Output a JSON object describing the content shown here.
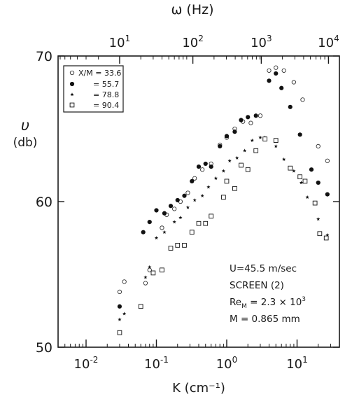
{
  "chart_data": {
    "type": "scatter",
    "xscale": "log",
    "yscale": "linear",
    "xlim": [
      0.004,
      40
    ],
    "ylim": [
      50,
      70
    ],
    "yticks": [
      {
        "value": 50,
        "label": "50"
      },
      {
        "value": 60,
        "label": "60"
      },
      {
        "value": 70,
        "label": "70"
      }
    ],
    "xticks": [
      {
        "value": 0.01,
        "base": "10",
        "exp": "-2"
      },
      {
        "value": 0.1,
        "base": "10",
        "exp": "-1"
      },
      {
        "value": 1,
        "base": "10",
        "exp": "0"
      },
      {
        "value": 10,
        "base": "10",
        "exp": "1"
      }
    ],
    "top_axis": {
      "label": "ω (Hz)",
      "ticks": [
        {
          "value": 0.03,
          "base": "10",
          "exp": "1"
        },
        {
          "value": 0.33,
          "base": "10",
          "exp": "2"
        },
        {
          "value": 3.1,
          "base": "10",
          "exp": "3"
        },
        {
          "value": 28,
          "base": "10",
          "exp": "4"
        }
      ]
    },
    "xlabel": "K (cm⁻¹)",
    "ylabel": [
      "υ",
      "(db)"
    ],
    "legend": {
      "placement": "top-left",
      "entries": [
        "X/M = 33.6",
        "= 55.7",
        "= 78.8",
        "= 90.4"
      ]
    },
    "annotations": [
      "U=45.5 m/sec",
      "SCREEN (2)",
      "Re_M = 2.3 × 10^3",
      "M = 0.865 mm"
    ],
    "series": [
      {
        "name": "X/M = 33.6",
        "marker": "open-circle",
        "points": [
          [
            0.03,
            53.8
          ],
          [
            0.035,
            54.5
          ],
          [
            0.07,
            54.4
          ],
          [
            0.08,
            55.3
          ],
          [
            0.12,
            58.2
          ],
          [
            0.14,
            59.1
          ],
          [
            0.18,
            59.5
          ],
          [
            0.22,
            60.0
          ],
          [
            0.28,
            60.6
          ],
          [
            0.35,
            61.6
          ],
          [
            0.45,
            62.2
          ],
          [
            0.6,
            62.6
          ],
          [
            0.8,
            63.9
          ],
          [
            1.0,
            64.4
          ],
          [
            1.3,
            65.0
          ],
          [
            1.7,
            65.5
          ],
          [
            2.2,
            65.4
          ],
          [
            3.0,
            65.9
          ],
          [
            4.0,
            69.0
          ],
          [
            5.0,
            69.2
          ],
          [
            6.5,
            69.0
          ],
          [
            9.0,
            68.2
          ],
          [
            12.0,
            67.0
          ],
          [
            20.0,
            63.8
          ],
          [
            27.0,
            62.8
          ]
        ]
      },
      {
        "name": "= 55.7",
        "marker": "filled-circle",
        "points": [
          [
            0.03,
            52.8
          ],
          [
            0.065,
            57.9
          ],
          [
            0.08,
            58.6
          ],
          [
            0.1,
            59.4
          ],
          [
            0.13,
            59.2
          ],
          [
            0.16,
            59.7
          ],
          [
            0.2,
            60.1
          ],
          [
            0.25,
            60.4
          ],
          [
            0.32,
            61.4
          ],
          [
            0.4,
            62.4
          ],
          [
            0.5,
            62.6
          ],
          [
            0.6,
            62.4
          ],
          [
            0.8,
            63.8
          ],
          [
            1.0,
            64.5
          ],
          [
            1.3,
            64.8
          ],
          [
            1.6,
            65.6
          ],
          [
            2.0,
            65.8
          ],
          [
            2.6,
            65.9
          ],
          [
            4.0,
            68.3
          ],
          [
            5.0,
            68.8
          ],
          [
            6.0,
            67.8
          ],
          [
            8.0,
            66.5
          ],
          [
            11.0,
            64.6
          ],
          [
            16.0,
            62.2
          ],
          [
            20.0,
            61.3
          ],
          [
            27.0,
            60.5
          ]
        ]
      },
      {
        "name": "= 78.8",
        "marker": "star",
        "points": [
          [
            0.03,
            51.9
          ],
          [
            0.035,
            52.3
          ],
          [
            0.07,
            54.8
          ],
          [
            0.08,
            55.5
          ],
          [
            0.1,
            57.5
          ],
          [
            0.13,
            57.9
          ],
          [
            0.18,
            58.6
          ],
          [
            0.22,
            58.9
          ],
          [
            0.28,
            59.6
          ],
          [
            0.35,
            60.1
          ],
          [
            0.45,
            60.4
          ],
          [
            0.55,
            61.0
          ],
          [
            0.7,
            61.6
          ],
          [
            0.9,
            62.1
          ],
          [
            1.1,
            62.8
          ],
          [
            1.4,
            63.0
          ],
          [
            1.8,
            63.5
          ],
          [
            2.3,
            64.2
          ],
          [
            3.0,
            64.4
          ],
          [
            3.5,
            64.4
          ],
          [
            5.0,
            63.8
          ],
          [
            6.5,
            62.9
          ],
          [
            9.0,
            62.1
          ],
          [
            11.5,
            61.3
          ],
          [
            14.0,
            60.3
          ],
          [
            20.0,
            58.8
          ],
          [
            27.0,
            57.7
          ]
        ]
      },
      {
        "name": "= 90.4",
        "marker": "open-square",
        "points": [
          [
            0.03,
            51.0
          ],
          [
            0.06,
            52.8
          ],
          [
            0.09,
            55.1
          ],
          [
            0.12,
            55.3
          ],
          [
            0.16,
            56.8
          ],
          [
            0.2,
            57.0
          ],
          [
            0.25,
            57.0
          ],
          [
            0.32,
            57.9
          ],
          [
            0.4,
            58.5
          ],
          [
            0.5,
            58.5
          ],
          [
            0.6,
            59.0
          ],
          [
            0.9,
            60.3
          ],
          [
            1.0,
            61.4
          ],
          [
            1.3,
            60.9
          ],
          [
            1.6,
            62.5
          ],
          [
            2.0,
            62.2
          ],
          [
            2.6,
            63.5
          ],
          [
            3.5,
            64.3
          ],
          [
            5.0,
            64.2
          ],
          [
            8.0,
            62.3
          ],
          [
            11.0,
            61.7
          ],
          [
            13.0,
            61.4
          ],
          [
            18.0,
            59.9
          ],
          [
            21.0,
            57.8
          ],
          [
            26.0,
            57.5
          ]
        ]
      }
    ]
  }
}
